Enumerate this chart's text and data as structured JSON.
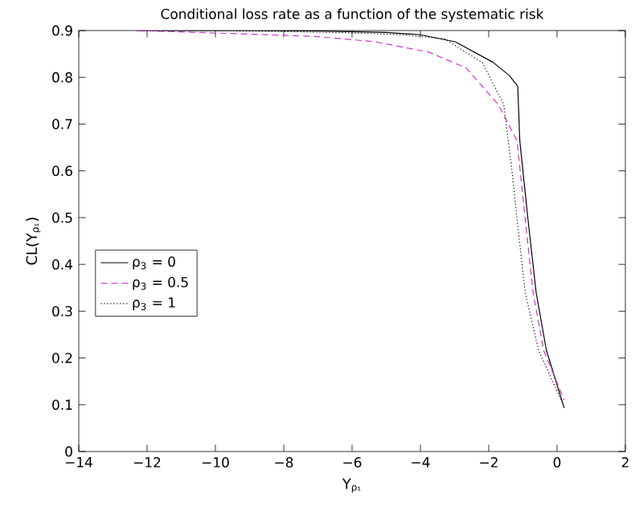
{
  "chart_data": {
    "type": "line",
    "title": "Conditional loss rate as a function of the systematic risk",
    "xlabel": "Y$_{ρ₁}$",
    "ylabel": "CL(Y$_{ρ₁}$)",
    "xlim": [
      -14,
      2
    ],
    "ylim": [
      0,
      0.9
    ],
    "xticks": [
      {
        "value": -14,
        "label": "−14"
      },
      {
        "value": -12,
        "label": "−12"
      },
      {
        "value": -10,
        "label": "−10"
      },
      {
        "value": -8,
        "label": "−8"
      },
      {
        "value": -6,
        "label": "−6"
      },
      {
        "value": -4,
        "label": "−4"
      },
      {
        "value": -2,
        "label": "−2"
      },
      0,
      2
    ],
    "yticks": [
      0,
      0.1,
      0.2,
      0.3,
      0.4,
      0.5,
      0.6,
      0.7,
      0.8,
      0.9
    ],
    "grid": false,
    "legend": "left",
    "series": [
      {
        "name": "ρ$_{3}$ = 0",
        "color": "#000000",
        "line_style": "solid",
        "x": [
          -12.3,
          -9,
          -6.9,
          -5,
          -4,
          -2.98,
          -1.87,
          -1.4,
          -1.15,
          -1.09,
          -0.85,
          -0.61,
          -0.31,
          0.21
        ],
        "values": [
          0.9,
          0.9,
          0.899,
          0.896,
          0.891,
          0.876,
          0.832,
          0.804,
          0.781,
          0.664,
          0.496,
          0.339,
          0.216,
          0.093
        ]
      },
      {
        "name": "ρ$_{3}$ = 0.5",
        "color": "#cc33cc",
        "line_style": "dashed",
        "x": [
          -12.3,
          -9.25,
          -7,
          -5.33,
          -3.76,
          -2.66,
          -1.72,
          -1.17,
          -0.93,
          -0.7,
          -0.39,
          0.21
        ],
        "values": [
          0.9,
          0.893,
          0.887,
          0.876,
          0.854,
          0.82,
          0.742,
          0.664,
          0.496,
          0.339,
          0.216,
          0.11
        ]
      },
      {
        "name": "ρ$_{3}$ = 1",
        "color": "#000000",
        "line_style": "dotted",
        "x": [
          -12.3,
          -9,
          -6,
          -4.5,
          -3.29,
          -2.19,
          -1.56,
          -1.33,
          -1.17,
          -0.93,
          -0.54,
          0.16
        ],
        "values": [
          0.9,
          0.899,
          0.895,
          0.891,
          0.882,
          0.832,
          0.742,
          0.608,
          0.496,
          0.339,
          0.216,
          0.104
        ]
      }
    ]
  }
}
